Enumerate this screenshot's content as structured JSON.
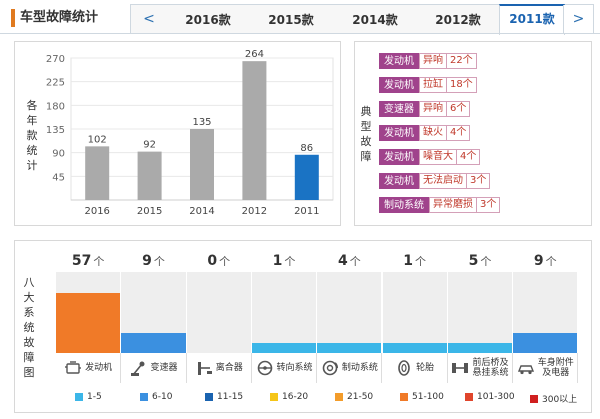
{
  "header": {
    "title": "车型故障统计",
    "prev_icon": "chevron-left-icon",
    "next_icon": "chevron-right-icon",
    "prev_label": "<",
    "next_label": ">",
    "tabs": [
      {
        "label": "2016款",
        "active": false
      },
      {
        "label": "2015款",
        "active": false
      },
      {
        "label": "2014款",
        "active": false
      },
      {
        "label": "2012款",
        "active": false
      },
      {
        "label": "2011款",
        "active": true
      }
    ]
  },
  "chart_panel": {
    "ylabel": "各年款统计"
  },
  "chart_data": {
    "type": "bar",
    "categories": [
      "2016",
      "2015",
      "2014",
      "2012",
      "2011"
    ],
    "values": [
      102,
      92,
      135,
      264,
      86
    ],
    "highlight_index": 4,
    "ylim": [
      0,
      270
    ],
    "yticks": [
      45,
      90,
      135,
      180,
      225,
      270
    ],
    "grid": true,
    "colors": {
      "default": "#aaaaaa",
      "highlight": "#1a73c4"
    }
  },
  "faults_panel": {
    "label": "典型故障",
    "items": [
      {
        "part": "发动机",
        "kind": "异响",
        "count": "22个"
      },
      {
        "part": "发动机",
        "kind": "拉缸",
        "count": "18个"
      },
      {
        "part": "变速器",
        "kind": "异响",
        "count": "6个"
      },
      {
        "part": "发动机",
        "kind": "缺火",
        "count": "4个"
      },
      {
        "part": "发动机",
        "kind": "噪音大",
        "count": "4个"
      },
      {
        "part": "发动机",
        "kind": "无法启动",
        "count": "3个"
      },
      {
        "part": "制动系统",
        "kind": "异常磨损",
        "count": "3个"
      }
    ]
  },
  "systems_panel": {
    "label": "八大系统故障图",
    "unit": "个",
    "systems": [
      {
        "name": "发动机",
        "count": "57",
        "value": 57,
        "color": "#f07a28",
        "icon": "engine-icon"
      },
      {
        "name": "变速器",
        "count": "9",
        "value": 9,
        "color": "#3b90e0",
        "icon": "gearbox-icon"
      },
      {
        "name": "离合器",
        "count": "0",
        "value": 0,
        "color": "#3bb6e8",
        "icon": "clutch-icon"
      },
      {
        "name": "转向系统",
        "count": "1",
        "value": 1,
        "color": "#3bb6e8",
        "icon": "steering-wheel-icon"
      },
      {
        "name": "制动系统",
        "count": "4",
        "value": 4,
        "color": "#3bb6e8",
        "icon": "brake-icon"
      },
      {
        "name": "轮胎",
        "count": "1",
        "value": 1,
        "color": "#3bb6e8",
        "icon": "tire-icon"
      },
      {
        "name": "前后桥及悬挂系统",
        "name_lines": [
          "前后桥及",
          "悬挂系统"
        ],
        "count": "5",
        "value": 5,
        "color": "#3bb6e8",
        "icon": "axle-icon"
      },
      {
        "name": "车身附件及电器",
        "name_lines": [
          "车身附件",
          "及电器"
        ],
        "count": "9",
        "value": 9,
        "color": "#3b90e0",
        "icon": "car-body-icon"
      }
    ],
    "legend": [
      {
        "label": "1-5",
        "color": "#3bb6e8"
      },
      {
        "label": "6-10",
        "color": "#3b90e0"
      },
      {
        "label": "11-15",
        "color": "#1a63b0"
      },
      {
        "label": "16-20",
        "color": "#f5c518"
      },
      {
        "label": "21-50",
        "color": "#f39c2a"
      },
      {
        "label": "51-100",
        "color": "#f07a28"
      },
      {
        "label": "101-300",
        "color": "#e0452c"
      },
      {
        "label": "300以上",
        "color": "#d01f1f"
      }
    ]
  }
}
